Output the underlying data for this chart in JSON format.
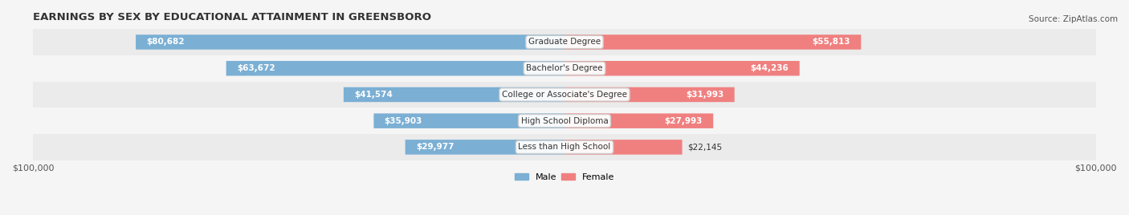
{
  "title": "EARNINGS BY SEX BY EDUCATIONAL ATTAINMENT IN GREENSBORO",
  "source": "Source: ZipAtlas.com",
  "categories": [
    "Less than High School",
    "High School Diploma",
    "College or Associate's Degree",
    "Bachelor's Degree",
    "Graduate Degree"
  ],
  "male_values": [
    29977,
    35903,
    41574,
    63672,
    80682
  ],
  "female_values": [
    22145,
    27993,
    31993,
    44236,
    55813
  ],
  "max_value": 100000,
  "male_color": "#7bafd4",
  "female_color": "#f08080",
  "bar_bg_color": "#e8e8e8",
  "row_bg_color": "#f0f0f0",
  "label_color": "#333333",
  "male_label": "Male",
  "female_label": "Female",
  "bar_height": 0.55,
  "figsize": [
    14.06,
    2.68
  ],
  "dpi": 100
}
